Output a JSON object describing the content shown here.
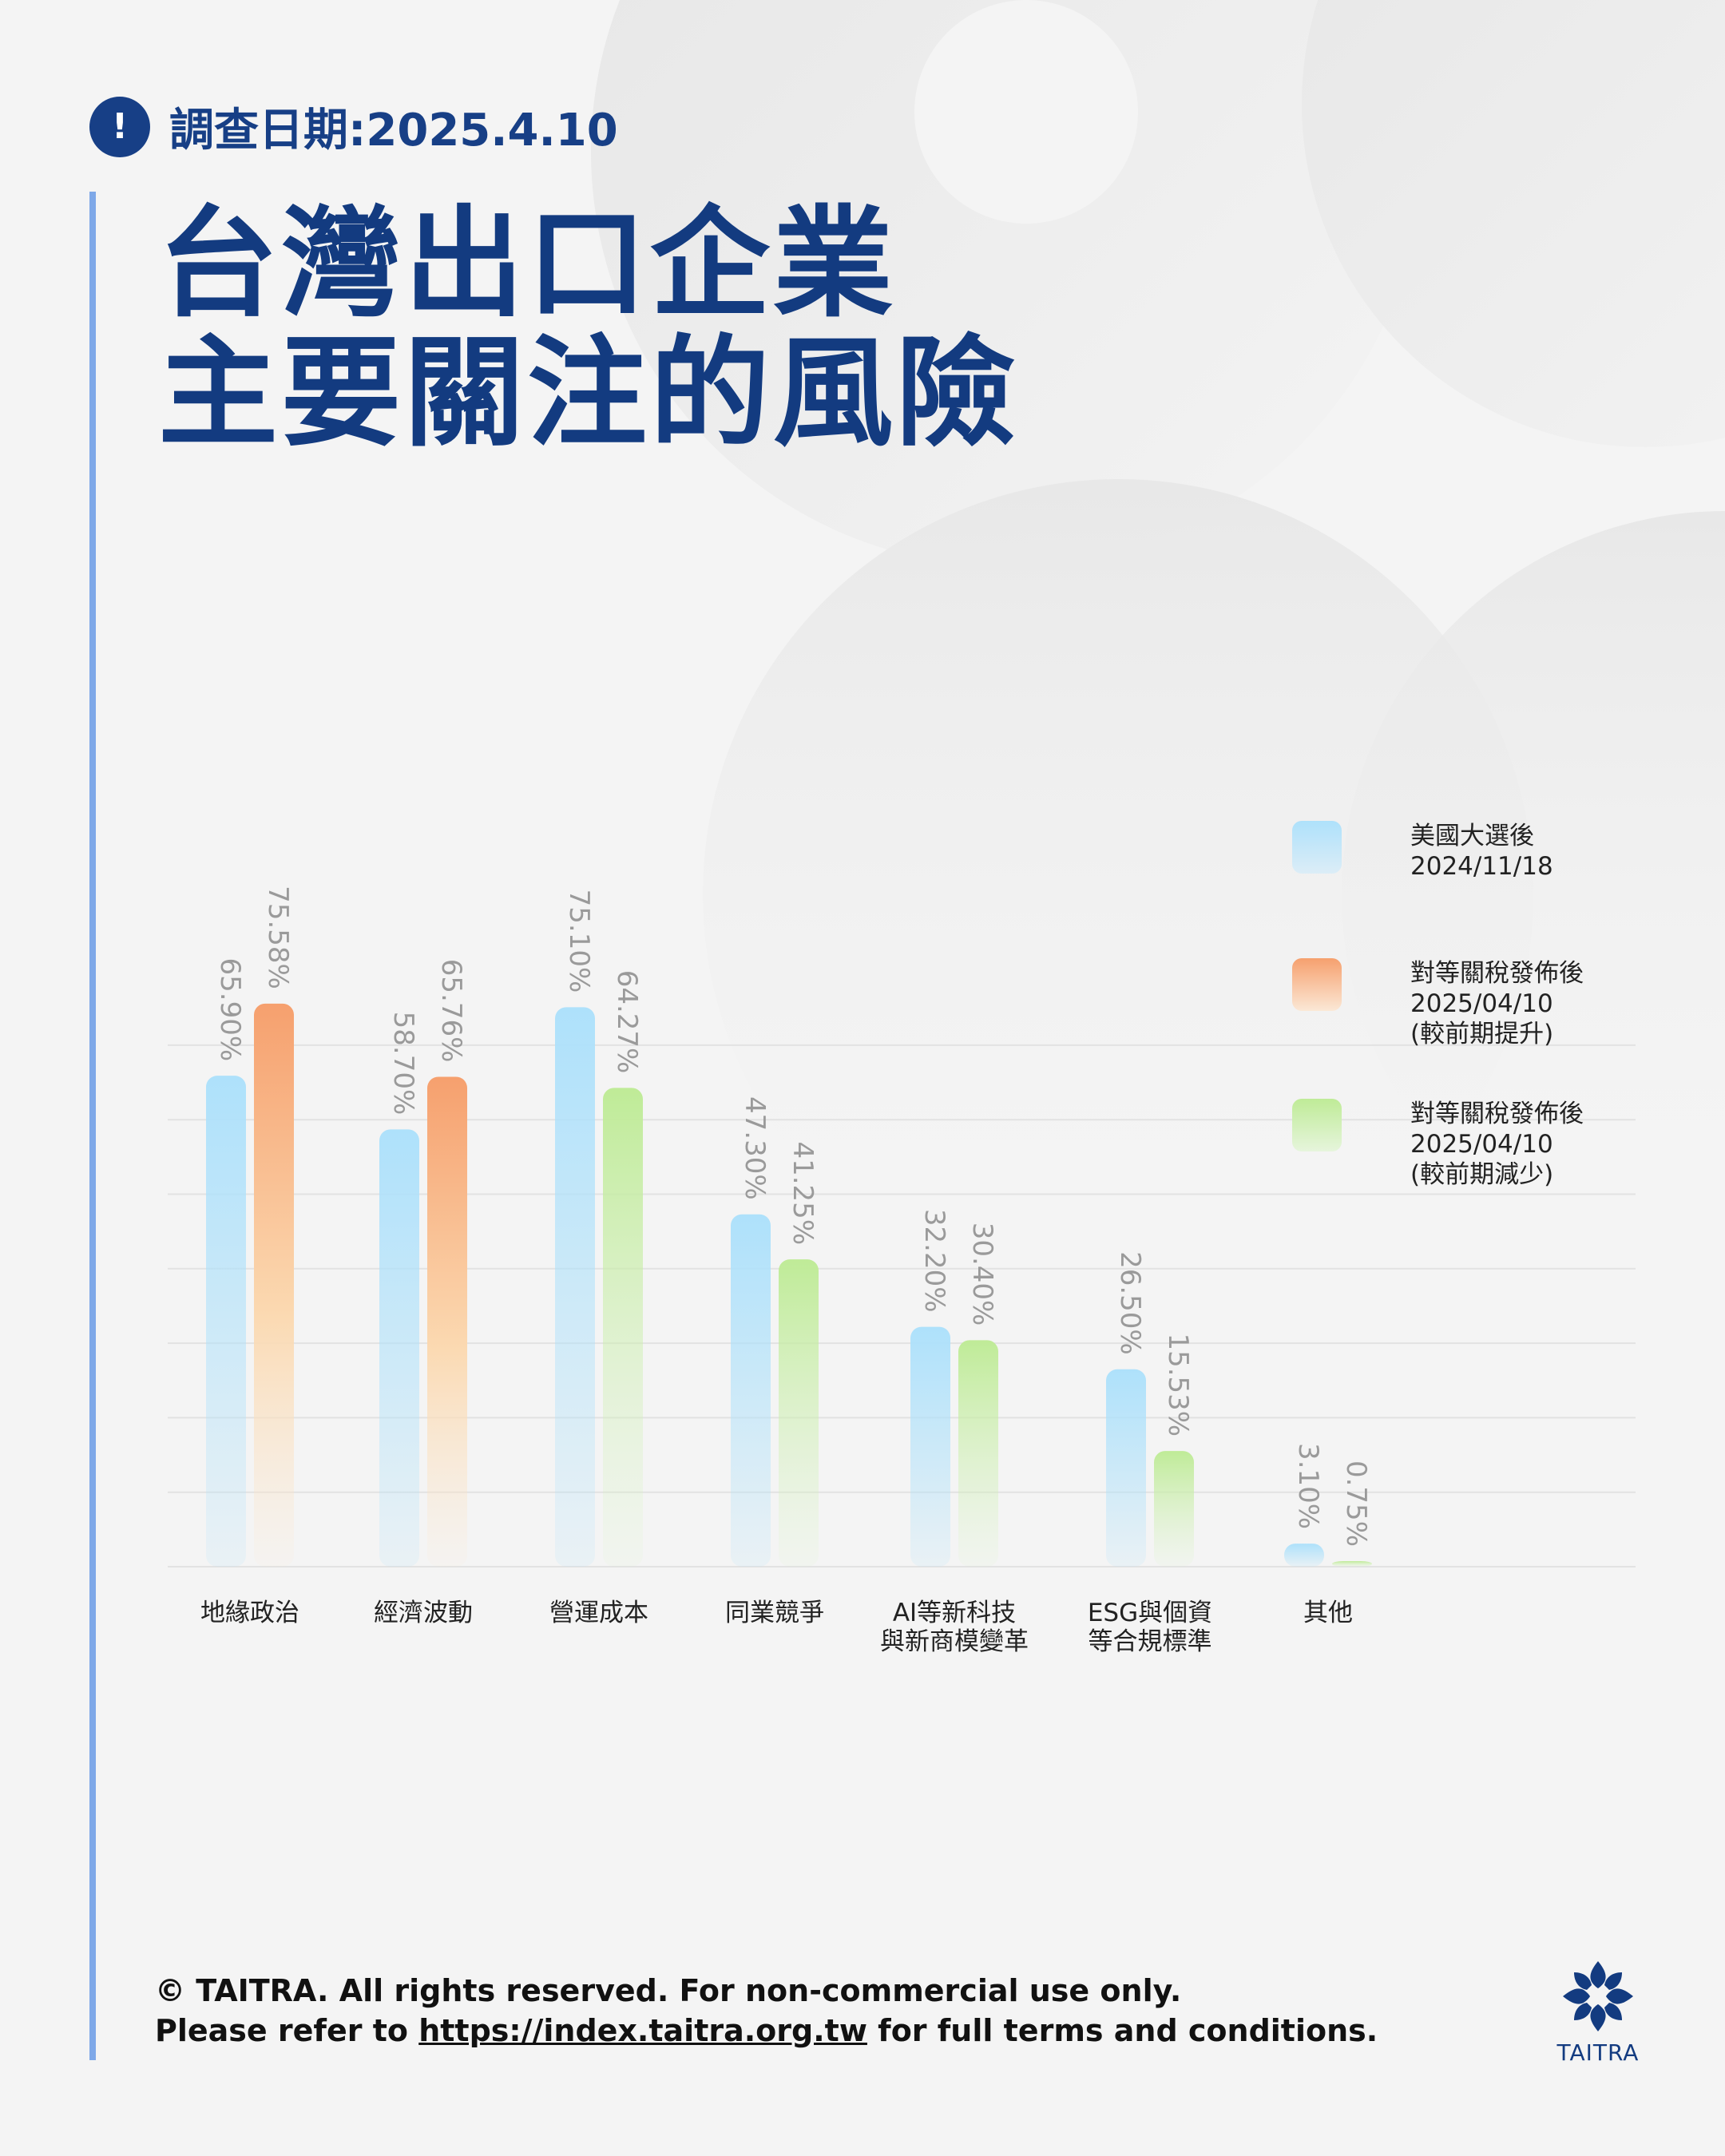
{
  "header": {
    "alert_icon": "!",
    "date_label": "調查日期:2025.4.10",
    "title_line1": "台灣出口企業",
    "title_line2": "主要關注的風險"
  },
  "colors": {
    "primary": "#133b80",
    "series_blue": "#aee1fb",
    "series_orange": "#f6a06e",
    "series_green": "#bfeb97"
  },
  "chart_data": {
    "type": "bar",
    "categories": [
      "地緣政治",
      "經濟波動",
      "營運成本",
      "同業競爭",
      "AI等新科技\n與新商模變革",
      "ESG與個資\n等合規標準",
      "其他"
    ],
    "series": [
      {
        "name": "美國大選後\n2024/11/18",
        "values": [
          65.9,
          58.7,
          75.1,
          47.3,
          32.2,
          26.5,
          3.1
        ],
        "labels": [
          "65.90%",
          "58.70%",
          "75.10%",
          "47.30%",
          "32.20%",
          "26.50%",
          "3.10%"
        ]
      },
      {
        "name": "對等關稅發佈後\n2025/04/10\n(較前期提升 / 減少)",
        "values": [
          75.58,
          65.76,
          64.27,
          41.25,
          30.4,
          15.53,
          0.75
        ],
        "labels": [
          "75.58%",
          "65.76%",
          "64.27%",
          "41.25%",
          "30.40%",
          "15.53%",
          "0.75%"
        ],
        "direction": [
          "up",
          "up",
          "down",
          "down",
          "down",
          "down",
          "down"
        ]
      }
    ],
    "ylim": [
      0,
      80
    ],
    "grid": true,
    "legend": [
      {
        "text": "美國大選後\n2024/11/18",
        "color": "blue"
      },
      {
        "text": "對等關稅發佈後\n2025/04/10\n(較前期提升)",
        "color": "orange"
      },
      {
        "text": "對等關稅發佈後\n2025/04/10\n(較前期減少)",
        "color": "green"
      }
    ],
    "legend_position": "right"
  },
  "footer": {
    "line1": "© TAITRA. All rights reserved. For non-commercial use only.",
    "line2_prefix": "Please refer to ",
    "line2_link": "https://index.taitra.org.tw",
    "line2_suffix": " for full terms and conditions."
  },
  "logo": {
    "text": "TAITRA",
    "icon": "taitra-logo-icon"
  }
}
